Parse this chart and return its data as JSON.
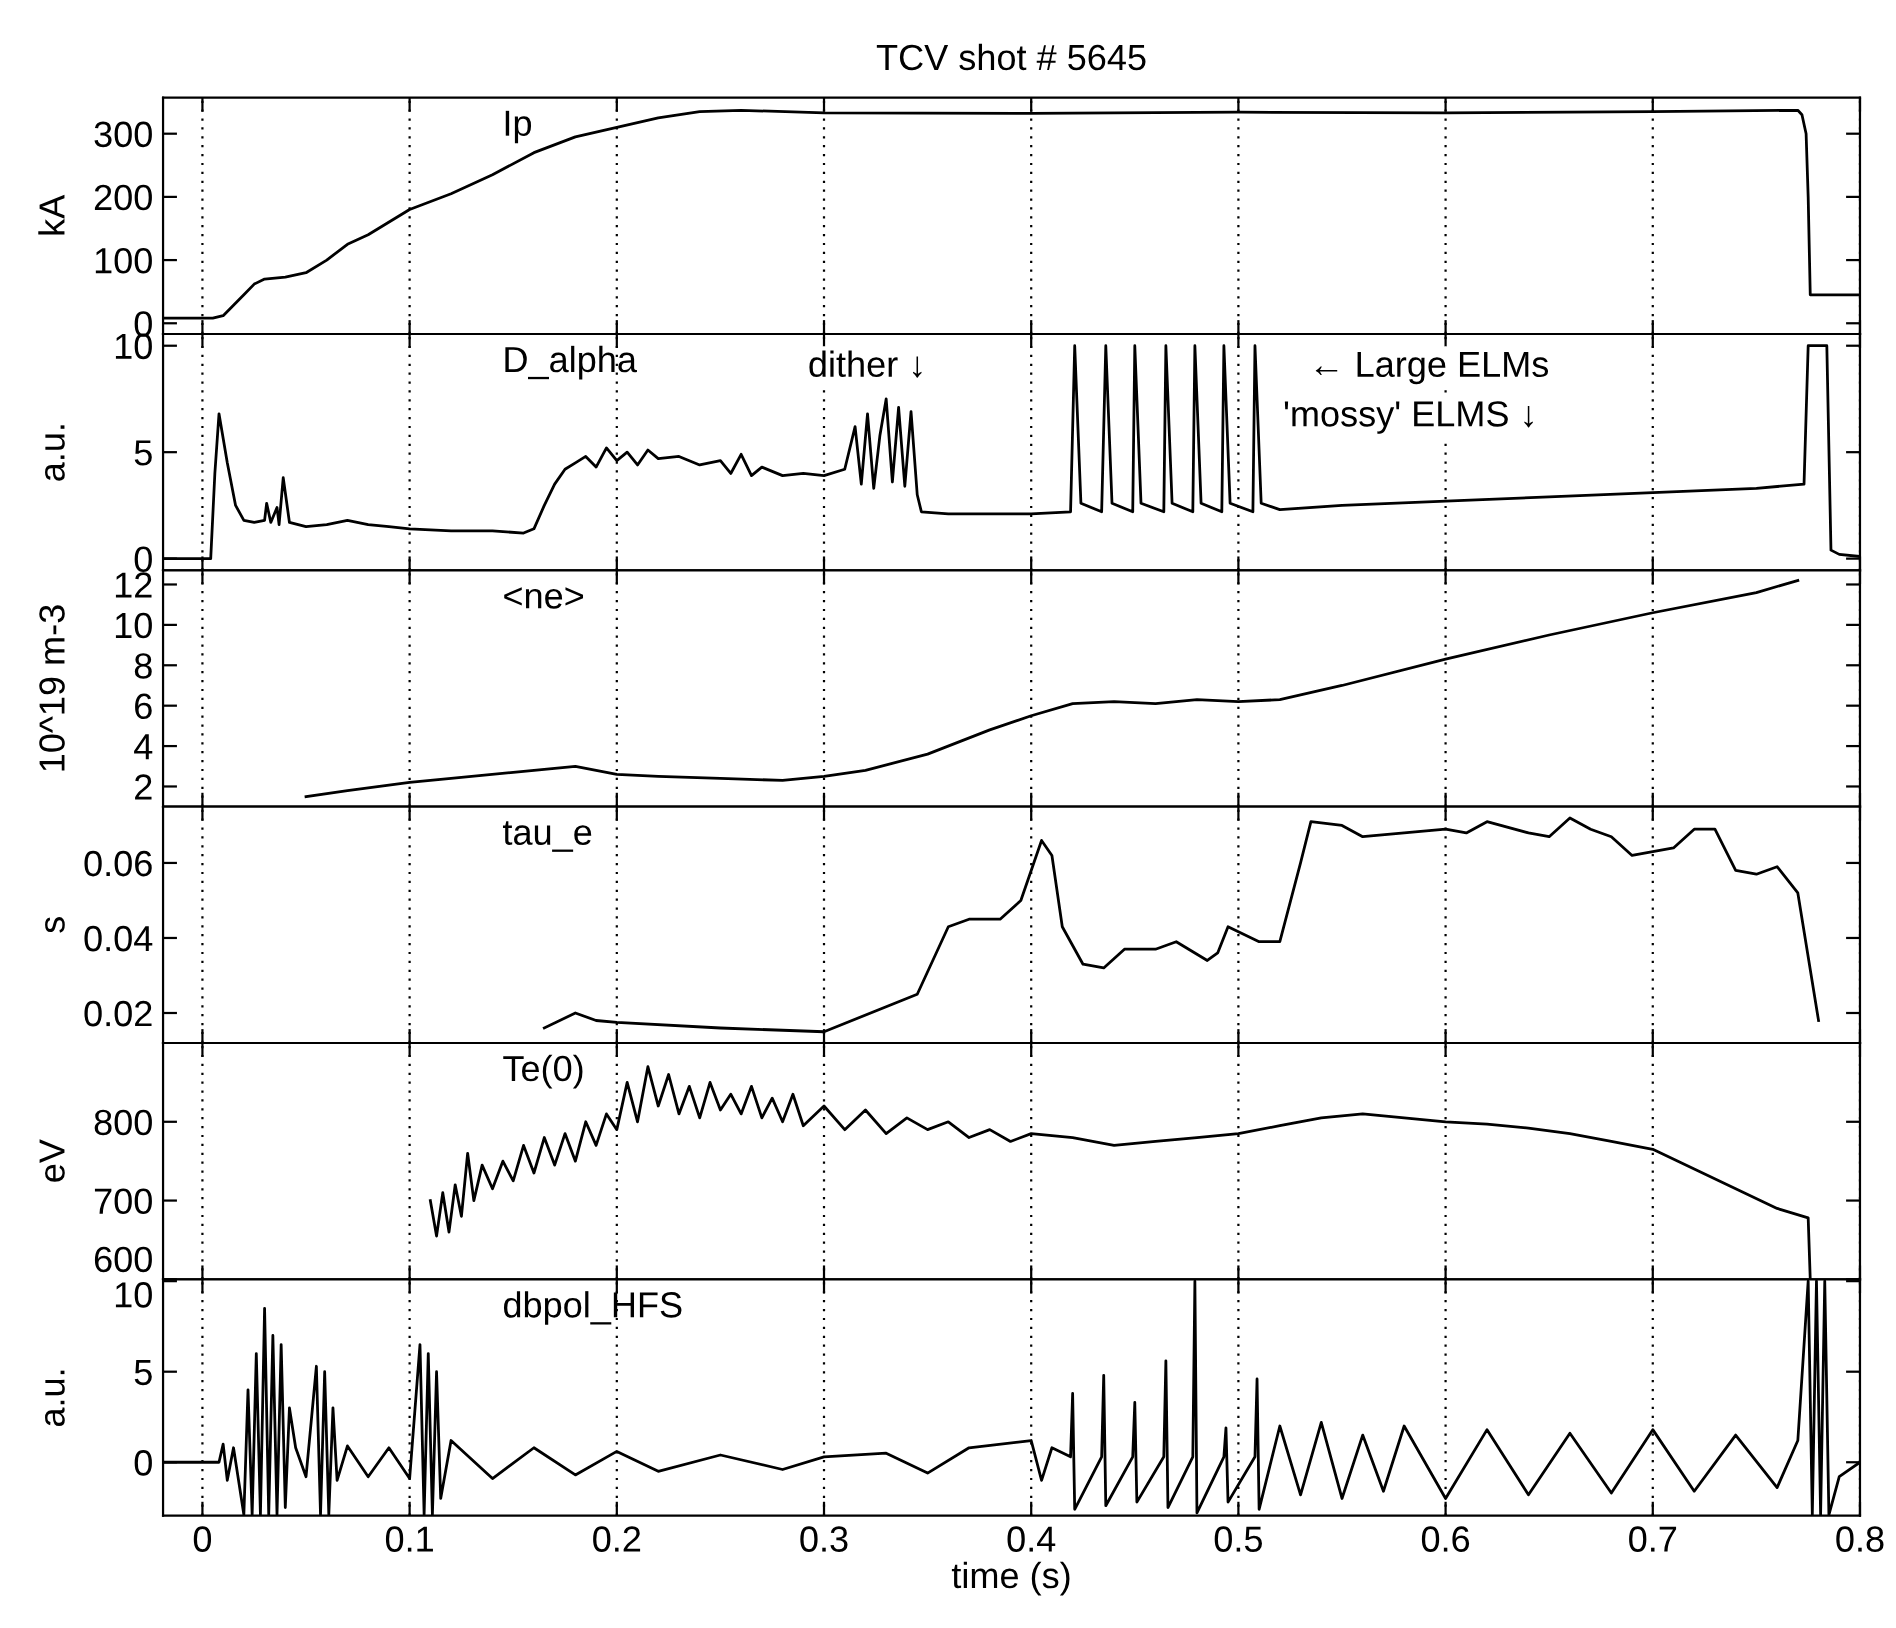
{
  "chart_data": [
    {
      "type": "line",
      "title": "TCV shot # 5645",
      "ylabel": "kA",
      "xlim": [
        -0.019,
        0.8
      ],
      "ylim": [
        -17,
        357
      ],
      "xticks": [
        0,
        0.1,
        0.2,
        0.3,
        0.4,
        0.5,
        0.6,
        0.7,
        0.8
      ],
      "yticks": [
        0,
        100,
        200,
        300
      ],
      "grid": "x",
      "tick_labels": "y",
      "series": [
        {
          "name": "Ip",
          "color": "#000000",
          "x": [
            -0.018,
            0.005,
            0.01,
            0.02,
            0.025,
            0.03,
            0.04,
            0.05,
            0.06,
            0.07,
            0.08,
            0.1,
            0.12,
            0.14,
            0.16,
            0.18,
            0.2,
            0.22,
            0.24,
            0.26,
            0.3,
            0.4,
            0.5,
            0.6,
            0.7,
            0.77,
            0.772,
            0.774,
            0.775,
            0.776,
            0.8
          ],
          "values": [
            8,
            8,
            12,
            45,
            62,
            70,
            73,
            80,
            100,
            125,
            140,
            180,
            205,
            235,
            270,
            295,
            310,
            325,
            335,
            337,
            333,
            332,
            334,
            333,
            335,
            337,
            330,
            300,
            200,
            45,
            45
          ]
        }
      ]
    },
    {
      "type": "line",
      "ylabel": "a.u.",
      "xlim": [
        -0.019,
        0.8
      ],
      "ylim": [
        -0.55,
        10.55
      ],
      "xticks": [
        0,
        0.1,
        0.2,
        0.3,
        0.4,
        0.5,
        0.6,
        0.7,
        0.8
      ],
      "yticks": [
        0,
        5,
        10
      ],
      "grid": "x",
      "tick_labels": "y",
      "annotations": [
        "dither ↓",
        "← Large ELMs",
        "'mossy' ELMS ↓"
      ],
      "series": [
        {
          "name": "D_alpha",
          "color": "#000000",
          "x": [
            -0.018,
            0.004,
            0.006,
            0.008,
            0.012,
            0.016,
            0.02,
            0.025,
            0.03,
            0.031,
            0.033,
            0.036,
            0.037,
            0.039,
            0.042,
            0.05,
            0.06,
            0.07,
            0.08,
            0.09,
            0.1,
            0.12,
            0.14,
            0.155,
            0.16,
            0.165,
            0.17,
            0.175,
            0.18,
            0.185,
            0.19,
            0.195,
            0.2,
            0.205,
            0.21,
            0.215,
            0.22,
            0.23,
            0.24,
            0.25,
            0.255,
            0.26,
            0.265,
            0.27,
            0.28,
            0.29,
            0.3,
            0.31,
            0.315,
            0.318,
            0.321,
            0.324,
            0.327,
            0.33,
            0.333,
            0.336,
            0.339,
            0.342,
            0.345,
            0.347,
            0.36,
            0.38,
            0.4,
            0.419,
            0.421,
            0.424,
            0.434,
            0.436,
            0.439,
            0.449,
            0.45,
            0.453,
            0.464,
            0.465,
            0.468,
            0.478,
            0.479,
            0.482,
            0.492,
            0.493,
            0.496,
            0.507,
            0.508,
            0.511,
            0.52,
            0.55,
            0.6,
            0.65,
            0.7,
            0.75,
            0.773,
            0.775,
            0.776,
            0.784,
            0.786,
            0.79,
            0.8
          ],
          "values": [
            0,
            0,
            4,
            6.8,
            4.5,
            2.5,
            1.8,
            1.7,
            1.8,
            2.6,
            1.7,
            2.4,
            1.6,
            3.8,
            1.7,
            1.5,
            1.6,
            1.8,
            1.6,
            1.5,
            1.4,
            1.3,
            1.3,
            1.2,
            1.4,
            2.5,
            3.5,
            4.2,
            4.5,
            4.8,
            4.3,
            5.2,
            4.6,
            5.0,
            4.4,
            5.1,
            4.7,
            4.8,
            4.4,
            4.6,
            4.0,
            4.9,
            3.9,
            4.3,
            3.9,
            4.0,
            3.9,
            4.2,
            6.2,
            3.5,
            6.8,
            3.3,
            5.8,
            7.5,
            3.6,
            7.1,
            3.4,
            6.9,
            3.0,
            2.2,
            2.1,
            2.1,
            2.1,
            2.2,
            10,
            2.6,
            2.2,
            10,
            2.6,
            2.2,
            10,
            2.6,
            2.2,
            10,
            2.6,
            2.2,
            10,
            2.6,
            2.2,
            10,
            2.6,
            2.2,
            10,
            2.6,
            2.3,
            2.5,
            2.7,
            2.9,
            3.1,
            3.3,
            3.5,
            10,
            10,
            10,
            0.4,
            0.2,
            0.1
          ]
        }
      ]
    },
    {
      "type": "line",
      "ylabel": "10^19 m-3",
      "xlim": [
        -0.019,
        0.8
      ],
      "ylim": [
        1,
        12.7
      ],
      "xticks": [
        0,
        0.1,
        0.2,
        0.3,
        0.4,
        0.5,
        0.6,
        0.7,
        0.8
      ],
      "yticks": [
        2,
        4,
        6,
        8,
        10,
        12
      ],
      "grid": "x",
      "tick_labels": "y",
      "series": [
        {
          "name": "<ne>",
          "color": "#000000",
          "x": [
            0.05,
            0.07,
            0.1,
            0.12,
            0.15,
            0.18,
            0.2,
            0.22,
            0.25,
            0.28,
            0.3,
            0.32,
            0.35,
            0.38,
            0.4,
            0.42,
            0.44,
            0.46,
            0.48,
            0.5,
            0.52,
            0.55,
            0.6,
            0.65,
            0.7,
            0.75,
            0.77
          ],
          "values": [
            1.5,
            1.8,
            2.2,
            2.4,
            2.7,
            3.0,
            2.6,
            2.5,
            2.4,
            2.3,
            2.5,
            2.8,
            3.6,
            4.8,
            5.5,
            6.1,
            6.2,
            6.1,
            6.3,
            6.2,
            6.3,
            7.0,
            8.3,
            9.5,
            10.6,
            11.6,
            12.2
          ]
        }
      ]
    },
    {
      "type": "line",
      "ylabel": "s",
      "xlim": [
        -0.019,
        0.8
      ],
      "ylim": [
        0.012,
        0.075
      ],
      "xticks": [
        0,
        0.1,
        0.2,
        0.3,
        0.4,
        0.5,
        0.6,
        0.7,
        0.8
      ],
      "yticks": [
        0.02,
        0.04,
        0.06
      ],
      "grid": "x",
      "tick_labels": "y",
      "series": [
        {
          "name": "tau_e",
          "color": "#000000",
          "x": [
            0.165,
            0.18,
            0.19,
            0.2,
            0.25,
            0.3,
            0.345,
            0.36,
            0.37,
            0.385,
            0.395,
            0.405,
            0.41,
            0.415,
            0.425,
            0.435,
            0.445,
            0.46,
            0.47,
            0.485,
            0.49,
            0.495,
            0.51,
            0.52,
            0.53,
            0.535,
            0.55,
            0.56,
            0.6,
            0.61,
            0.62,
            0.64,
            0.65,
            0.66,
            0.67,
            0.68,
            0.69,
            0.71,
            0.72,
            0.73,
            0.74,
            0.75,
            0.76,
            0.77,
            0.78
          ],
          "values": [
            0.016,
            0.02,
            0.018,
            0.0175,
            0.016,
            0.015,
            0.025,
            0.043,
            0.045,
            0.045,
            0.05,
            0.066,
            0.062,
            0.043,
            0.033,
            0.032,
            0.037,
            0.037,
            0.039,
            0.034,
            0.036,
            0.043,
            0.039,
            0.039,
            0.06,
            0.071,
            0.07,
            0.067,
            0.069,
            0.068,
            0.071,
            0.068,
            0.067,
            0.072,
            0.069,
            0.067,
            0.062,
            0.064,
            0.069,
            0.069,
            0.058,
            0.057,
            0.059,
            0.052,
            0.018
          ]
        }
      ]
    },
    {
      "type": "line",
      "ylabel": "eV",
      "xlim": [
        -0.019,
        0.8
      ],
      "ylim": [
        600,
        900
      ],
      "xticks": [
        0,
        0.1,
        0.2,
        0.3,
        0.4,
        0.5,
        0.6,
        0.7,
        0.8
      ],
      "yticks": [
        600,
        700,
        800
      ],
      "grid": "x",
      "tick_labels": "y",
      "series": [
        {
          "name": "Te(0)",
          "color": "#000000",
          "x": [
            0.11,
            0.113,
            0.116,
            0.119,
            0.122,
            0.125,
            0.128,
            0.131,
            0.135,
            0.14,
            0.145,
            0.15,
            0.155,
            0.16,
            0.165,
            0.17,
            0.175,
            0.18,
            0.185,
            0.19,
            0.195,
            0.2,
            0.205,
            0.21,
            0.215,
            0.22,
            0.225,
            0.23,
            0.235,
            0.24,
            0.245,
            0.25,
            0.255,
            0.26,
            0.265,
            0.27,
            0.275,
            0.28,
            0.285,
            0.29,
            0.3,
            0.31,
            0.32,
            0.33,
            0.34,
            0.35,
            0.36,
            0.37,
            0.38,
            0.39,
            0.4,
            0.42,
            0.44,
            0.46,
            0.48,
            0.5,
            0.52,
            0.54,
            0.56,
            0.58,
            0.6,
            0.62,
            0.64,
            0.66,
            0.68,
            0.7,
            0.72,
            0.74,
            0.76,
            0.775,
            0.776
          ],
          "values": [
            700,
            655,
            710,
            660,
            720,
            680,
            760,
            700,
            745,
            715,
            750,
            725,
            770,
            735,
            780,
            745,
            785,
            750,
            800,
            770,
            810,
            790,
            850,
            800,
            870,
            820,
            860,
            810,
            845,
            805,
            850,
            815,
            835,
            810,
            845,
            805,
            830,
            800,
            835,
            795,
            820,
            790,
            815,
            785,
            805,
            790,
            800,
            780,
            790,
            775,
            785,
            780,
            770,
            775,
            780,
            785,
            795,
            805,
            810,
            805,
            800,
            797,
            792,
            785,
            775,
            765,
            740,
            715,
            690,
            678,
            600
          ]
        }
      ]
    },
    {
      "type": "line",
      "ylabel": "a.u.",
      "xlabel": "time (s)",
      "xlim": [
        -0.019,
        0.8
      ],
      "ylim": [
        -2.95,
        10.1
      ],
      "xticks": [
        0,
        0.1,
        0.2,
        0.3,
        0.4,
        0.5,
        0.6,
        0.7,
        0.8
      ],
      "yticks": [
        0,
        5,
        10
      ],
      "grid": "x",
      "series": [
        {
          "name": "dbpol_HFS",
          "color": "#000000",
          "x": [
            -0.019,
            0.008,
            0.01,
            0.012,
            0.015,
            0.02,
            0.022,
            0.024,
            0.026,
            0.028,
            0.03,
            0.032,
            0.034,
            0.036,
            0.038,
            0.04,
            0.042,
            0.045,
            0.05,
            0.055,
            0.057,
            0.059,
            0.061,
            0.063,
            0.065,
            0.07,
            0.08,
            0.09,
            0.1,
            0.105,
            0.107,
            0.109,
            0.111,
            0.113,
            0.115,
            0.12,
            0.14,
            0.16,
            0.18,
            0.2,
            0.22,
            0.25,
            0.28,
            0.3,
            0.33,
            0.35,
            0.37,
            0.4,
            0.405,
            0.41,
            0.419,
            0.42,
            0.421,
            0.434,
            0.435,
            0.436,
            0.449,
            0.45,
            0.451,
            0.464,
            0.465,
            0.466,
            0.478,
            0.479,
            0.48,
            0.493,
            0.494,
            0.495,
            0.508,
            0.509,
            0.51,
            0.52,
            0.53,
            0.54,
            0.55,
            0.56,
            0.57,
            0.58,
            0.6,
            0.62,
            0.64,
            0.66,
            0.68,
            0.7,
            0.72,
            0.74,
            0.76,
            0.77,
            0.775,
            0.777,
            0.779,
            0.781,
            0.783,
            0.785,
            0.79,
            0.8
          ],
          "values": [
            0,
            0,
            1,
            -1,
            0.8,
            -2.9,
            4,
            -2.9,
            6,
            -2.9,
            8.5,
            -2.9,
            7,
            -2.9,
            6.5,
            -2.5,
            3,
            0.8,
            -0.8,
            5.3,
            -2.9,
            5,
            -2.9,
            3,
            -1,
            0.9,
            -0.8,
            0.8,
            -0.9,
            6.5,
            -2.9,
            6,
            -2.9,
            5,
            -2,
            1.2,
            -0.9,
            0.8,
            -0.7,
            0.6,
            -0.5,
            0.4,
            -0.4,
            0.3,
            0.5,
            -0.6,
            0.8,
            1.2,
            -1,
            0.8,
            0.3,
            3.8,
            -2.6,
            0.3,
            4.8,
            -2.4,
            0.3,
            3.3,
            -2.2,
            0.3,
            5.6,
            -2.5,
            0.3,
            10,
            -2.8,
            0.3,
            1.9,
            -2.2,
            0.3,
            4.6,
            -2.6,
            2,
            -1.8,
            2.2,
            -2,
            1.5,
            -1.6,
            2,
            -2,
            1.8,
            -1.8,
            1.6,
            -1.7,
            1.8,
            -1.6,
            1.5,
            -1.4,
            1.2,
            10,
            -2.9,
            10,
            -2.9,
            10,
            -2.9,
            -0.8,
            0
          ]
        }
      ]
    }
  ]
}
